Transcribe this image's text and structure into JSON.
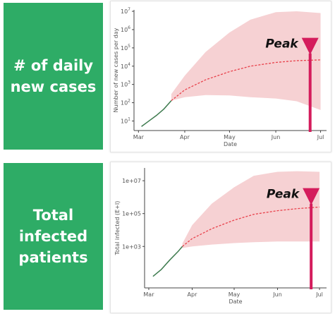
{
  "panels": [
    {
      "label_lines": [
        "# of daily",
        "new cases"
      ],
      "box_color": "#2eac66"
    },
    {
      "label_lines": [
        "Total",
        "infected",
        "patients"
      ],
      "box_color": "#2eac66"
    }
  ],
  "chart_data": [
    {
      "type": "line",
      "xlabel": "Date",
      "ylabel": "Number of new cases per day",
      "x_ticks": [
        "Mar",
        "Apr",
        "May",
        "Jun",
        "Jul"
      ],
      "y_ticks": [
        "10^1",
        "10^2",
        "10^3",
        "10^4",
        "10^5",
        "10^6",
        "10^7"
      ],
      "y_tick_base": "10",
      "y_tick_exponents": [
        "1",
        "2",
        "3",
        "4",
        "5",
        "6",
        "7"
      ],
      "y_scale": "log",
      "ylim": [
        3,
        12000000
      ],
      "observed": {
        "x": [
          "Mar 3",
          "Mar 8",
          "Mar 13",
          "Mar 18",
          "Mar 23"
        ],
        "y": [
          5,
          10,
          20,
          45,
          130
        ]
      },
      "forecast_median": {
        "x": [
          "Mar 23",
          "Apr 1",
          "Apr 15",
          "May 1",
          "May 15",
          "Jun 1",
          "Jun 15",
          "Jul 1"
        ],
        "y": [
          130,
          500,
          1800,
          5000,
          10000,
          16000,
          20000,
          22000
        ]
      },
      "forecast_band": {
        "x": [
          "Mar 23",
          "Apr 1",
          "Apr 15",
          "May 1",
          "May 15",
          "Jun 1",
          "Jun 15",
          "Jul 1"
        ],
        "upper": [
          300,
          3000,
          60000,
          700000,
          3500000,
          9000000,
          10000000,
          8000000
        ],
        "lower": [
          130,
          200,
          260,
          250,
          200,
          170,
          120,
          40
        ]
      },
      "peak": {
        "label": "Peak",
        "x": "Jun 24",
        "y": 50000
      },
      "colors": {
        "observed": "#3e7b4f",
        "forecast": "#e8414b",
        "band": "#f5c9cb",
        "peak": "#d41c5c"
      }
    },
    {
      "type": "line",
      "xlabel": "Date",
      "ylabel": "Total infected (E+I)",
      "x_ticks": [
        "Mar",
        "Apr",
        "May",
        "Jun",
        "Jul"
      ],
      "y_ticks": [
        "1e+03",
        "1e+05",
        "1e+07"
      ],
      "y_scale": "log",
      "ylim": [
        3,
        60000000
      ],
      "observed": {
        "x": [
          "Mar 4",
          "Mar 10",
          "Mar 16",
          "Mar 22",
          "Mar 25"
        ],
        "y": [
          15,
          40,
          150,
          500,
          1000
        ]
      },
      "forecast_median": {
        "x": [
          "Mar 25",
          "Apr 1",
          "Apr 15",
          "May 1",
          "May 15",
          "Jun 1",
          "Jun 15",
          "Jul 1"
        ],
        "y": [
          1000,
          3000,
          12000,
          40000,
          90000,
          150000,
          200000,
          250000
        ]
      },
      "forecast_band": {
        "x": [
          "Mar 25",
          "Apr 1",
          "Apr 15",
          "May 1",
          "May 15",
          "Jun 1",
          "Jun 15",
          "Jul 1"
        ],
        "upper": [
          1500,
          20000,
          400000,
          4000000,
          20000000,
          35000000,
          38000000,
          35000000
        ],
        "lower": [
          800,
          1000,
          1300,
          1600,
          1800,
          2000,
          2000,
          2000
        ]
      },
      "peak": {
        "label": "Peak",
        "x": "Jun 25",
        "y": 400000
      },
      "colors": {
        "observed": "#3e7b4f",
        "forecast": "#e8414b",
        "band": "#f5c9cb",
        "peak": "#d41c5c"
      }
    }
  ]
}
